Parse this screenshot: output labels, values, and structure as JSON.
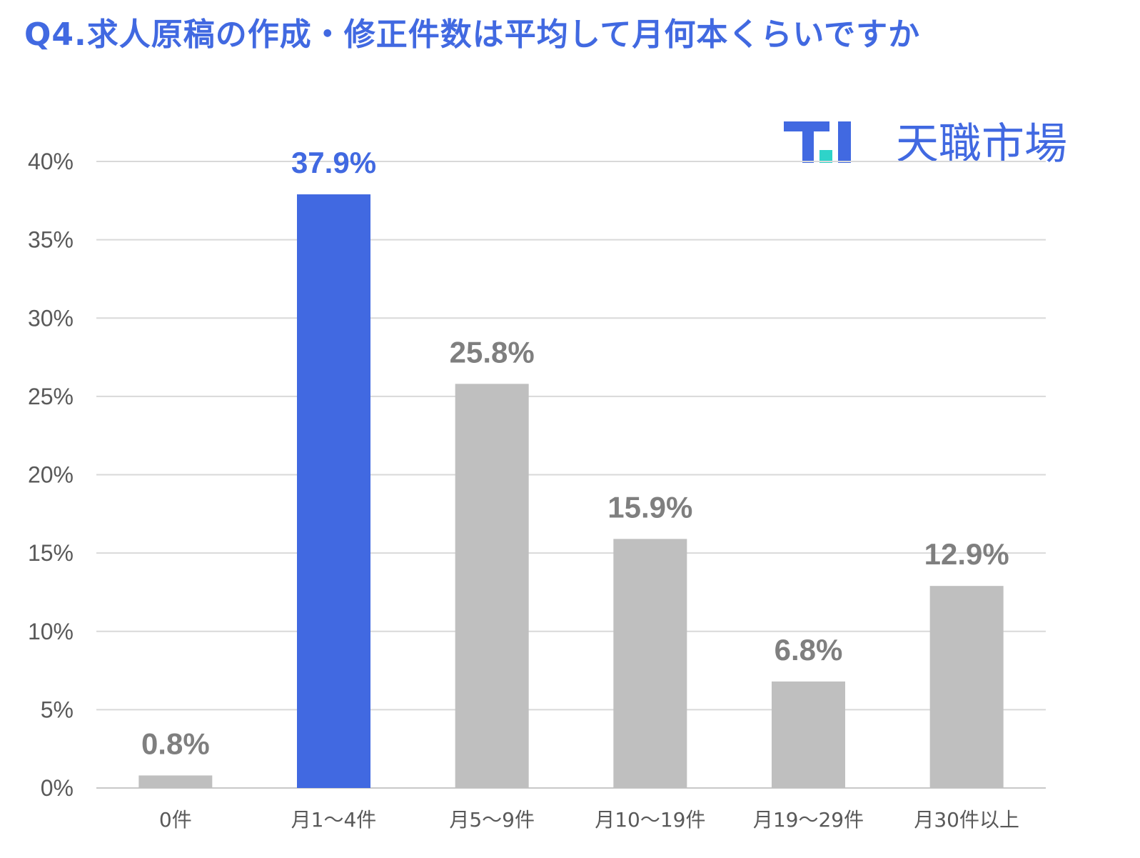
{
  "title": "Q4.求人原稿の作成・修正件数は平均して月何本くらいですか",
  "logo": {
    "text": "天職市場",
    "mark": "T.I logo"
  },
  "colors": {
    "accent": "#4169e1",
    "bar": "#bfbfbf",
    "label": "#7f7f7f",
    "axis": "#595959",
    "grid": "#d9d9d9",
    "logo_dot": "#2ed3c9"
  },
  "chart_data": {
    "type": "bar",
    "title": "Q4.求人原稿の作成・修正件数は平均して月何本くらいですか",
    "categories": [
      "0件",
      "月1～4件",
      "月5～9件",
      "月10～19件",
      "月19～29件",
      "月30件以上"
    ],
    "values": [
      0.8,
      37.9,
      25.8,
      15.9,
      6.8,
      12.9
    ],
    "data_labels": [
      "0.8%",
      "37.9%",
      "25.8%",
      "15.9%",
      "6.8%",
      "12.9%"
    ],
    "highlight_index": 1,
    "ylim": [
      0,
      40
    ],
    "yticks": [
      0,
      5,
      10,
      15,
      20,
      25,
      30,
      35,
      40
    ],
    "ytick_labels": [
      "0%",
      "5%",
      "10%",
      "15%",
      "20%",
      "25%",
      "30%",
      "35%",
      "40%"
    ],
    "grid": true,
    "xlabel": "",
    "ylabel": ""
  }
}
